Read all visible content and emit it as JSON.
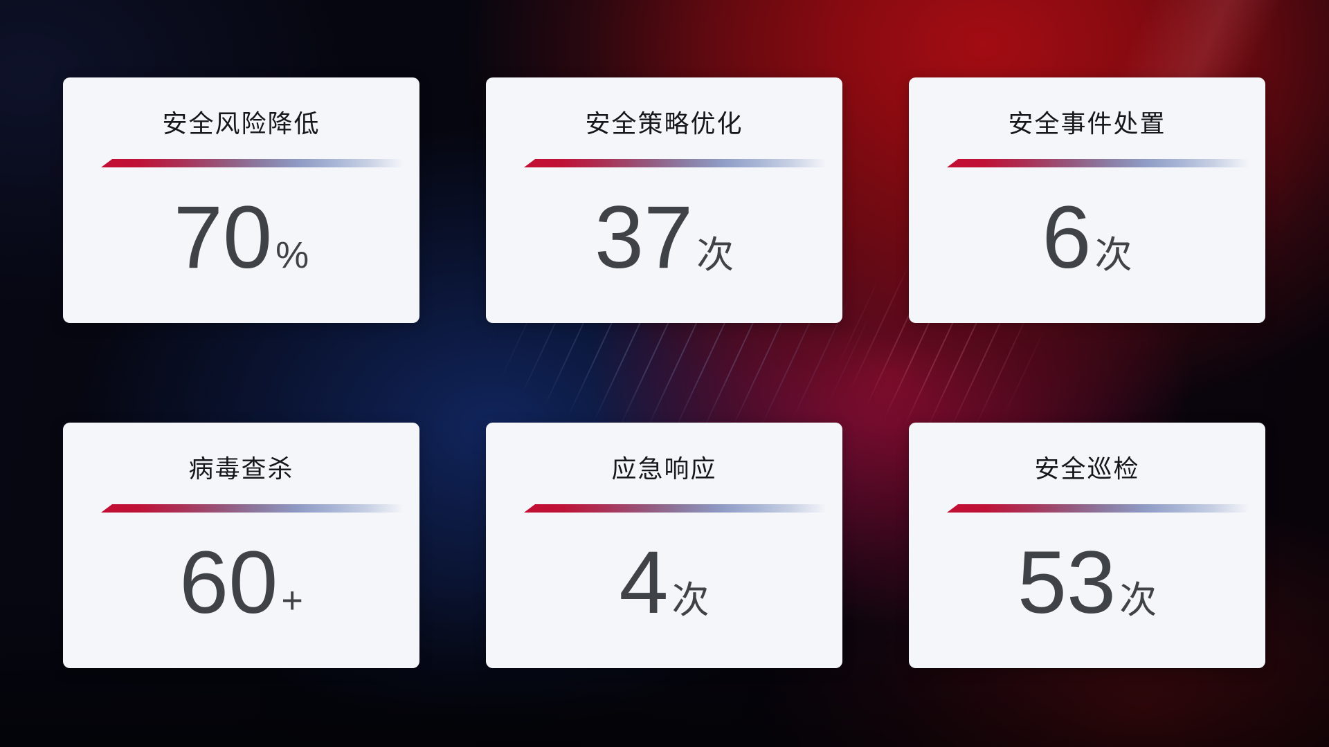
{
  "dashboard": {
    "cards": [
      {
        "title": "安全风险降低",
        "value": "70",
        "unit": "%"
      },
      {
        "title": "安全策略优化",
        "value": "37",
        "unit": "次"
      },
      {
        "title": "安全事件处置",
        "value": "6",
        "unit": "次"
      },
      {
        "title": "病毒查杀",
        "value": "60",
        "unit": "+"
      },
      {
        "title": "应急响应",
        "value": "4",
        "unit": "次"
      },
      {
        "title": "安全巡检",
        "value": "53",
        "unit": "次"
      }
    ],
    "colors": {
      "accent_red": "#c30e33",
      "accent_blue": "#8f9bc4",
      "card_background": "#f5f6fa",
      "title_text": "#15171c",
      "value_text": "#3f4247",
      "background_red": "#9a0c12",
      "background_crimson": "#9c0e38",
      "background_navy": "#0d1c48"
    }
  }
}
